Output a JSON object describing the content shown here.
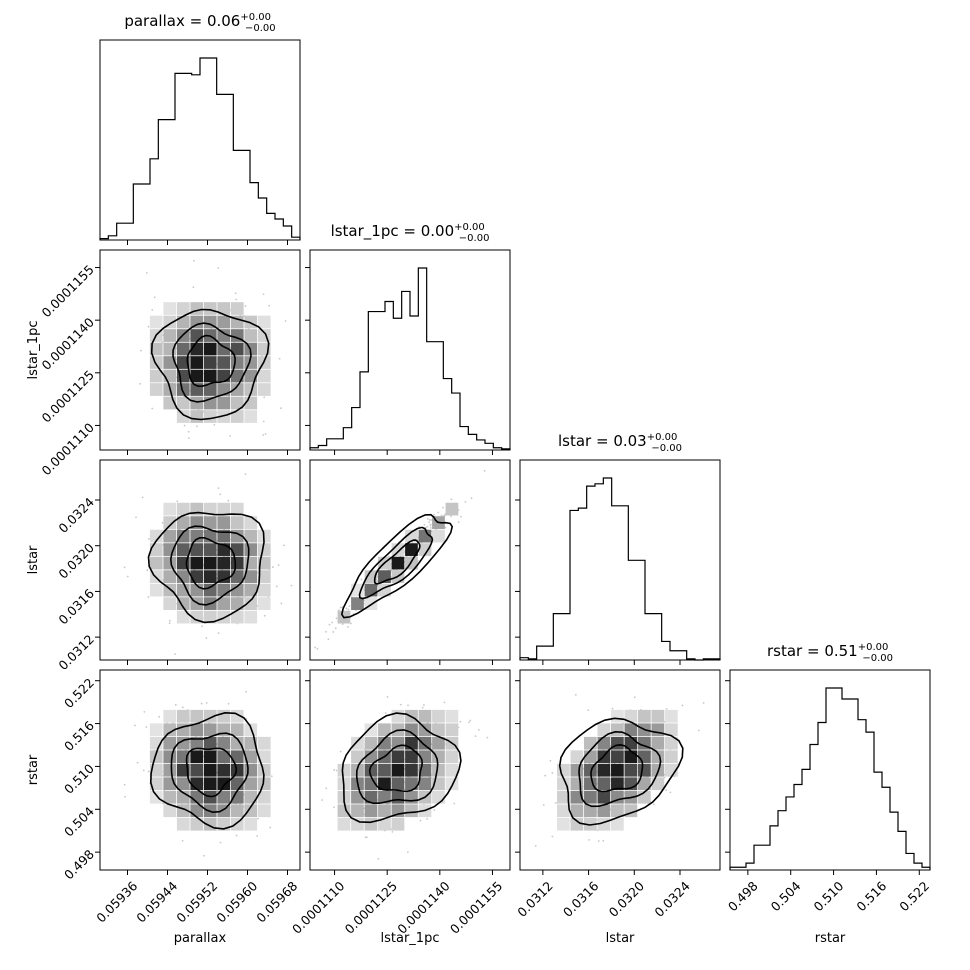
{
  "figure": {
    "title_prefix_sep": " = ",
    "titles": [
      {
        "param": "parallax",
        "value": "0.06",
        "plus": "+0.00",
        "minus": "−0.00"
      },
      {
        "param": "lstar_1pc",
        "value": "0.00",
        "plus": "+0.00",
        "minus": "−0.00"
      },
      {
        "param": "lstar",
        "value": "0.03",
        "plus": "+0.00",
        "minus": "−0.00"
      },
      {
        "param": "rstar",
        "value": "0.51",
        "plus": "+0.00",
        "minus": "−0.00"
      }
    ],
    "xlabels": [
      "parallax",
      "lstar_1pc",
      "lstar",
      "rstar"
    ],
    "ylabels": [
      "lstar_1pc",
      "lstar",
      "rstar"
    ],
    "colors": {
      "line": "#000000",
      "point": "#c8c8c8"
    }
  },
  "chart_data": {
    "type": "corner",
    "parameters": [
      "parallax",
      "lstar_1pc",
      "lstar",
      "rstar"
    ],
    "ranges": {
      "parallax": [
        0.059305,
        0.059705
      ],
      "lstar_1pc": [
        0.0001103,
        0.000116
      ],
      "lstar": [
        0.031,
        0.03275
      ],
      "rstar": [
        0.4955,
        0.5235
      ]
    },
    "ticks": {
      "parallax": {
        "values": [
          0.05936,
          0.05944,
          0.05952,
          0.0596,
          0.05968
        ],
        "labels": [
          "0.05936",
          "0.05944",
          "0.05952",
          "0.05960",
          "0.05968"
        ]
      },
      "lstar_1pc": {
        "values": [
          0.000111,
          0.0001125,
          0.000114,
          0.0001155
        ],
        "labels": [
          "0.0001110",
          "0.0001125",
          "0.0001140",
          "0.0001155"
        ]
      },
      "lstar": {
        "values": [
          0.0312,
          0.0316,
          0.032,
          0.0324
        ],
        "labels": [
          "0.0312",
          "0.0316",
          "0.0320",
          "0.0324"
        ]
      },
      "rstar": {
        "values": [
          0.498,
          0.504,
          0.51,
          0.516,
          0.522
        ],
        "labels": [
          "0.498",
          "0.504",
          "0.510",
          "0.516",
          "0.522"
        ]
      }
    },
    "histograms": {
      "parallax": [
        1,
        3,
        12,
        12,
        40,
        40,
        58,
        86,
        86,
        119,
        119,
        118,
        130,
        130,
        104,
        104,
        64,
        64,
        41,
        30,
        19,
        15,
        10,
        2
      ],
      "lstar_1pc": [
        2,
        4,
        10,
        10,
        20,
        38,
        70,
        124,
        124,
        133,
        118,
        142,
        120,
        163,
        97,
        97,
        64,
        51,
        21,
        14,
        9,
        6,
        2,
        1
      ],
      "lstar": [
        2,
        1,
        12,
        12,
        40,
        40,
        129,
        131,
        150,
        152,
        157,
        133,
        133,
        86,
        86,
        40,
        40,
        16,
        8,
        8,
        1,
        0,
        1,
        1
      ],
      "rstar": [
        2,
        2,
        5,
        18,
        18,
        32,
        43,
        53,
        62,
        73,
        91,
        107,
        132,
        132,
        124,
        124,
        109,
        100,
        71,
        60,
        42,
        28,
        12,
        5,
        2
      ]
    },
    "pairs": [
      {
        "x": "parallax",
        "y": "lstar_1pc",
        "corr": 0.0
      },
      {
        "x": "parallax",
        "y": "lstar",
        "corr": -0.1
      },
      {
        "x": "lstar_1pc",
        "y": "lstar",
        "corr": 0.97
      },
      {
        "x": "parallax",
        "y": "rstar",
        "corr": -0.1
      },
      {
        "x": "lstar_1pc",
        "y": "rstar",
        "corr": 0.45
      },
      {
        "x": "lstar",
        "y": "rstar",
        "corr": 0.5
      }
    ],
    "grid": false
  }
}
